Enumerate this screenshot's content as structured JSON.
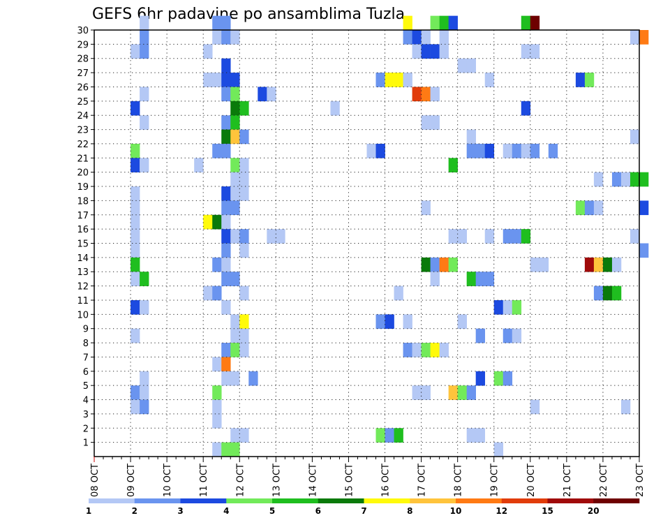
{
  "chart_data": {
    "type": "heatmap",
    "title": "GEFS 6hr padavine po ansamblima Tuzla",
    "xlabel": "",
    "ylabel": "",
    "x_ticks": [
      "08 OCT",
      "09 OCT",
      "10 OCT",
      "11 OCT",
      "12 OCT",
      "13 OCT",
      "14 OCT",
      "15 OCT",
      "16 OCT",
      "17 OCT",
      "18 OCT",
      "19 OCT",
      "20 OCT",
      "21 OCT",
      "22 OCT",
      "23 OCT"
    ],
    "x_unit": "6-hour step from 08 OCT 00Z",
    "xlim": [
      0,
      60
    ],
    "y_ticks": [
      1,
      2,
      3,
      4,
      5,
      6,
      7,
      8,
      9,
      10,
      11,
      12,
      13,
      14,
      15,
      16,
      17,
      18,
      19,
      20,
      21,
      22,
      23,
      24,
      25,
      26,
      27,
      28,
      29,
      30
    ],
    "ylim": [
      0,
      30
    ],
    "grid": true,
    "colorbar": {
      "labels": [
        "1",
        "2",
        "3",
        "4",
        "5",
        "6",
        "7",
        "8",
        "10",
        "12",
        "15",
        "20"
      ],
      "colors": [
        "#b4c8f5",
        "#6a94ef",
        "#1c4ae0",
        "#72ea5a",
        "#1fbe1f",
        "#0a7a0a",
        "#fffa0a",
        "#ffc43c",
        "#ff7a14",
        "#e13c0a",
        "#a00a0a",
        "#6e0000"
      ]
    },
    "cells": [
      [
        0,
        5,
        30
      ],
      [
        1,
        13,
        30
      ],
      [
        1,
        14,
        30
      ],
      [
        6,
        34,
        30
      ],
      [
        3,
        37,
        30
      ],
      [
        4,
        38,
        30
      ],
      [
        2,
        39,
        30
      ],
      [
        4,
        47,
        30
      ],
      [
        11,
        48,
        30
      ],
      [
        1,
        5,
        29
      ],
      [
        0,
        13,
        29
      ],
      [
        1,
        14,
        29
      ],
      [
        0,
        15,
        29
      ],
      [
        1,
        34,
        29
      ],
      [
        2,
        35,
        29
      ],
      [
        0,
        36,
        29
      ],
      [
        0,
        38,
        29
      ],
      [
        0,
        59,
        29
      ],
      [
        8,
        60,
        29
      ],
      [
        0,
        4,
        28
      ],
      [
        1,
        5,
        28
      ],
      [
        0,
        12,
        28
      ],
      [
        0,
        35,
        28
      ],
      [
        2,
        36,
        28
      ],
      [
        2,
        37,
        28
      ],
      [
        0,
        38,
        28
      ],
      [
        0,
        47,
        28
      ],
      [
        0,
        48,
        28
      ],
      [
        2,
        14,
        27
      ],
      [
        0,
        40,
        27
      ],
      [
        0,
        41,
        27
      ],
      [
        0,
        12,
        26
      ],
      [
        0,
        13,
        26
      ],
      [
        2,
        14,
        26
      ],
      [
        2,
        15,
        26
      ],
      [
        1,
        31,
        26
      ],
      [
        6,
        32,
        26
      ],
      [
        6,
        33,
        26
      ],
      [
        0,
        34,
        26
      ],
      [
        0,
        43,
        26
      ],
      [
        2,
        53,
        26
      ],
      [
        3,
        54,
        26
      ],
      [
        0,
        5,
        25
      ],
      [
        1,
        14,
        25
      ],
      [
        3,
        15,
        25
      ],
      [
        2,
        18,
        25
      ],
      [
        0,
        19,
        25
      ],
      [
        9,
        35,
        25
      ],
      [
        8,
        36,
        25
      ],
      [
        0,
        37,
        25
      ],
      [
        2,
        4,
        24
      ],
      [
        5,
        15,
        24
      ],
      [
        4,
        16,
        24
      ],
      [
        0,
        26,
        24
      ],
      [
        2,
        47,
        24
      ],
      [
        0,
        5,
        23
      ],
      [
        1,
        14,
        23
      ],
      [
        4,
        15,
        23
      ],
      [
        0,
        36,
        23
      ],
      [
        0,
        37,
        23
      ],
      [
        5,
        14,
        22
      ],
      [
        7,
        15,
        22
      ],
      [
        1,
        16,
        22
      ],
      [
        0,
        41,
        22
      ],
      [
        0,
        59,
        22
      ],
      [
        3,
        4,
        21
      ],
      [
        1,
        13,
        21
      ],
      [
        1,
        14,
        21
      ],
      [
        0,
        30,
        21
      ],
      [
        2,
        31,
        21
      ],
      [
        1,
        41,
        21
      ],
      [
        1,
        42,
        21
      ],
      [
        2,
        43,
        21
      ],
      [
        0,
        45,
        21
      ],
      [
        1,
        46,
        21
      ],
      [
        0,
        47,
        21
      ],
      [
        1,
        48,
        21
      ],
      [
        1,
        50,
        21
      ],
      [
        2,
        4,
        20
      ],
      [
        0,
        5,
        20
      ],
      [
        0,
        11,
        20
      ],
      [
        3,
        15,
        20
      ],
      [
        0,
        16,
        20
      ],
      [
        4,
        39,
        20
      ],
      [
        0,
        15,
        19
      ],
      [
        0,
        16,
        19
      ],
      [
        0,
        55,
        19
      ],
      [
        1,
        57,
        19
      ],
      [
        0,
        58,
        19
      ],
      [
        4,
        59,
        19
      ],
      [
        4,
        60,
        19
      ],
      [
        0,
        4,
        18
      ],
      [
        2,
        14,
        18
      ],
      [
        0,
        15,
        18
      ],
      [
        0,
        16,
        18
      ],
      [
        0,
        4,
        17
      ],
      [
        1,
        14,
        17
      ],
      [
        1,
        15,
        17
      ],
      [
        0,
        36,
        17
      ],
      [
        3,
        53,
        17
      ],
      [
        1,
        54,
        17
      ],
      [
        0,
        55,
        17
      ],
      [
        2,
        60,
        17
      ],
      [
        0,
        4,
        16
      ],
      [
        6,
        12,
        16
      ],
      [
        5,
        13,
        16
      ],
      [
        0,
        14,
        16
      ],
      [
        0,
        4,
        15
      ],
      [
        2,
        14,
        15
      ],
      [
        0,
        15,
        15
      ],
      [
        1,
        16,
        15
      ],
      [
        0,
        19,
        15
      ],
      [
        0,
        20,
        15
      ],
      [
        0,
        39,
        15
      ],
      [
        0,
        40,
        15
      ],
      [
        0,
        43,
        15
      ],
      [
        1,
        45,
        15
      ],
      [
        1,
        46,
        15
      ],
      [
        4,
        47,
        15
      ],
      [
        0,
        59,
        15
      ],
      [
        0,
        4,
        14
      ],
      [
        1,
        14,
        14
      ],
      [
        0,
        16,
        14
      ],
      [
        1,
        60,
        14
      ],
      [
        4,
        4,
        13
      ],
      [
        1,
        13,
        13
      ],
      [
        0,
        14,
        13
      ],
      [
        5,
        36,
        13
      ],
      [
        1,
        37,
        13
      ],
      [
        8,
        38,
        13
      ],
      [
        3,
        39,
        13
      ],
      [
        0,
        48,
        13
      ],
      [
        0,
        49,
        13
      ],
      [
        10,
        54,
        13
      ],
      [
        7,
        55,
        13
      ],
      [
        5,
        56,
        13
      ],
      [
        0,
        57,
        13
      ],
      [
        0,
        4,
        12
      ],
      [
        4,
        5,
        12
      ],
      [
        1,
        14,
        12
      ],
      [
        1,
        15,
        12
      ],
      [
        0,
        37,
        12
      ],
      [
        4,
        41,
        12
      ],
      [
        1,
        42,
        12
      ],
      [
        1,
        43,
        12
      ],
      [
        0,
        12,
        11
      ],
      [
        1,
        13,
        11
      ],
      [
        0,
        16,
        11
      ],
      [
        0,
        33,
        11
      ],
      [
        1,
        55,
        11
      ],
      [
        5,
        56,
        11
      ],
      [
        4,
        57,
        11
      ],
      [
        2,
        4,
        10
      ],
      [
        0,
        5,
        10
      ],
      [
        0,
        14,
        10
      ],
      [
        2,
        44,
        10
      ],
      [
        0,
        45,
        10
      ],
      [
        3,
        46,
        10
      ],
      [
        0,
        15,
        9
      ],
      [
        6,
        16,
        9
      ],
      [
        1,
        31,
        9
      ],
      [
        2,
        32,
        9
      ],
      [
        0,
        34,
        9
      ],
      [
        0,
        40,
        9
      ],
      [
        0,
        4,
        8
      ],
      [
        0,
        15,
        8
      ],
      [
        0,
        16,
        8
      ],
      [
        1,
        42,
        8
      ],
      [
        1,
        45,
        8
      ],
      [
        0,
        46,
        8
      ],
      [
        1,
        14,
        7
      ],
      [
        3,
        15,
        7
      ],
      [
        0,
        16,
        7
      ],
      [
        1,
        34,
        7
      ],
      [
        0,
        35,
        7
      ],
      [
        3,
        36,
        7
      ],
      [
        6,
        37,
        7
      ],
      [
        0,
        38,
        7
      ],
      [
        0,
        13,
        6
      ],
      [
        8,
        14,
        6
      ],
      [
        0,
        5,
        5
      ],
      [
        0,
        14,
        5
      ],
      [
        0,
        15,
        5
      ],
      [
        1,
        17,
        5
      ],
      [
        2,
        42,
        5
      ],
      [
        3,
        44,
        5
      ],
      [
        1,
        45,
        5
      ],
      [
        1,
        4,
        4
      ],
      [
        0,
        5,
        4
      ],
      [
        3,
        13,
        4
      ],
      [
        0,
        35,
        4
      ],
      [
        0,
        36,
        4
      ],
      [
        7,
        39,
        4
      ],
      [
        3,
        40,
        4
      ],
      [
        1,
        41,
        4
      ],
      [
        0,
        4,
        3
      ],
      [
        1,
        5,
        3
      ],
      [
        0,
        13,
        3
      ],
      [
        0,
        48,
        3
      ],
      [
        0,
        58,
        3
      ],
      [
        0,
        13,
        2
      ],
      [
        0,
        15,
        1
      ],
      [
        0,
        16,
        1
      ],
      [
        3,
        31,
        1
      ],
      [
        1,
        32,
        1
      ],
      [
        4,
        33,
        1
      ],
      [
        0,
        41,
        1
      ],
      [
        0,
        42,
        1
      ],
      [
        0,
        13,
        0
      ],
      [
        3,
        14,
        0
      ],
      [
        3,
        15,
        0
      ],
      [
        0,
        44,
        0
      ]
    ]
  }
}
